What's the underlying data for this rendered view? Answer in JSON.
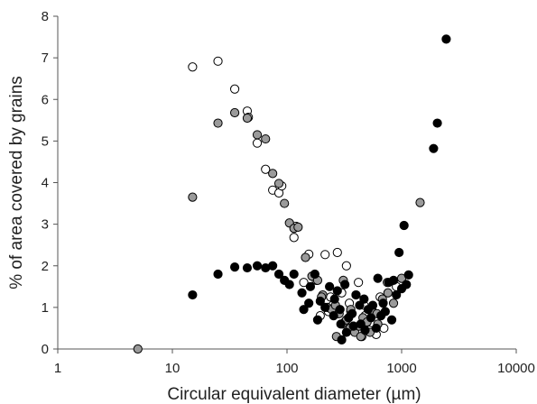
{
  "chart_data": {
    "type": "scatter",
    "title": "",
    "xlabel": "Circular equivalent diameter (µm)",
    "ylabel": "% of area covered by grains",
    "xscale": "log",
    "xlim": [
      1,
      10000
    ],
    "ylim": [
      0,
      8
    ],
    "x_ticks": [
      "1",
      "10",
      "100",
      "1000",
      "10000"
    ],
    "y_ticks": [
      "0",
      "1",
      "2",
      "3",
      "4",
      "5",
      "6",
      "7",
      "8"
    ],
    "grid": false,
    "legend": "none",
    "series": [
      {
        "marker": "open-circle",
        "fill": "#ffffff",
        "points": [
          [
            15,
            6.78
          ],
          [
            25,
            6.92
          ],
          [
            35,
            6.25
          ],
          [
            45,
            5.72
          ],
          [
            46,
            5.57
          ],
          [
            55,
            4.95
          ],
          [
            65,
            4.32
          ],
          [
            75,
            3.82
          ],
          [
            85,
            3.75
          ],
          [
            90,
            3.92
          ],
          [
            115,
            2.68
          ],
          [
            120,
            2.95
          ],
          [
            155,
            2.28
          ],
          [
            215,
            2.27
          ],
          [
            275,
            2.32
          ],
          [
            330,
            2.0
          ],
          [
            140,
            1.6
          ],
          [
            180,
            1.65
          ],
          [
            240,
            1.25
          ],
          [
            300,
            1.35
          ],
          [
            350,
            1.1
          ],
          [
            420,
            1.6
          ],
          [
            470,
            1.05
          ],
          [
            550,
            0.95
          ],
          [
            650,
            1.25
          ],
          [
            750,
            1.6
          ],
          [
            900,
            1.5
          ],
          [
            195,
            0.8
          ],
          [
            230,
            0.9
          ],
          [
            280,
            0.85
          ],
          [
            320,
            0.65
          ],
          [
            380,
            0.55
          ],
          [
            410,
            0.45
          ],
          [
            450,
            0.3
          ],
          [
            520,
            0.45
          ],
          [
            600,
            0.35
          ],
          [
            700,
            0.5
          ],
          [
            250,
            1.05
          ],
          [
            360,
            0.9
          ],
          [
            480,
            0.8
          ]
        ]
      },
      {
        "marker": "grey-circle",
        "fill": "#9a9a9a",
        "points": [
          [
            5,
            0.0
          ],
          [
            15,
            3.65
          ],
          [
            25,
            5.43
          ],
          [
            35,
            5.68
          ],
          [
            45,
            5.55
          ],
          [
            55,
            5.15
          ],
          [
            65,
            5.05
          ],
          [
            75,
            4.22
          ],
          [
            85,
            3.98
          ],
          [
            95,
            3.5
          ],
          [
            105,
            3.03
          ],
          [
            115,
            2.9
          ],
          [
            125,
            2.93
          ],
          [
            145,
            2.2
          ],
          [
            165,
            1.75
          ],
          [
            185,
            1.65
          ],
          [
            205,
            1.3
          ],
          [
            225,
            1.0
          ],
          [
            245,
            0.95
          ],
          [
            265,
            1.05
          ],
          [
            285,
            0.85
          ],
          [
            305,
            0.6
          ],
          [
            330,
            0.7
          ],
          [
            355,
            0.5
          ],
          [
            390,
            0.4
          ],
          [
            425,
            0.55
          ],
          [
            460,
            0.75
          ],
          [
            500,
            0.65
          ],
          [
            550,
            0.9
          ],
          [
            610,
            0.85
          ],
          [
            680,
            1.2
          ],
          [
            760,
            1.35
          ],
          [
            850,
            1.1
          ],
          [
            1000,
            1.7
          ],
          [
            1450,
            3.52
          ],
          [
            310,
            1.65
          ],
          [
            400,
            1.3
          ],
          [
            270,
            0.3
          ],
          [
            440,
            0.3
          ],
          [
            530,
            0.4
          ],
          [
            200,
            1.25
          ],
          [
            360,
            0.95
          ],
          [
            620,
            0.6
          ]
        ]
      },
      {
        "marker": "filled-circle",
        "fill": "#000000",
        "points": [
          [
            15,
            1.3
          ],
          [
            25,
            1.8
          ],
          [
            35,
            1.97
          ],
          [
            45,
            1.95
          ],
          [
            55,
            2.0
          ],
          [
            65,
            1.95
          ],
          [
            75,
            2.0
          ],
          [
            85,
            1.8
          ],
          [
            95,
            1.65
          ],
          [
            105,
            1.55
          ],
          [
            115,
            1.8
          ],
          [
            135,
            1.35
          ],
          [
            155,
            1.1
          ],
          [
            175,
            1.8
          ],
          [
            195,
            1.15
          ],
          [
            215,
            1.0
          ],
          [
            235,
            1.5
          ],
          [
            255,
            0.8
          ],
          [
            275,
            1.4
          ],
          [
            295,
            0.6
          ],
          [
            320,
            1.55
          ],
          [
            345,
            0.75
          ],
          [
            370,
            0.85
          ],
          [
            400,
            1.3
          ],
          [
            430,
            1.05
          ],
          [
            470,
            1.2
          ],
          [
            510,
            0.95
          ],
          [
            560,
            1.05
          ],
          [
            620,
            1.7
          ],
          [
            690,
            1.1
          ],
          [
            770,
            1.6
          ],
          [
            850,
            1.65
          ],
          [
            950,
            2.32
          ],
          [
            1050,
            2.97
          ],
          [
            1100,
            1.55
          ],
          [
            1150,
            1.78
          ],
          [
            1900,
            4.82
          ],
          [
            2050,
            5.43
          ],
          [
            2450,
            7.45
          ],
          [
            140,
            0.95
          ],
          [
            160,
            1.5
          ],
          [
            185,
            0.7
          ],
          [
            260,
            1.2
          ],
          [
            290,
            0.95
          ],
          [
            300,
            0.22
          ],
          [
            330,
            0.4
          ],
          [
            380,
            0.55
          ],
          [
            440,
            0.6
          ],
          [
            480,
            0.45
          ],
          [
            540,
            0.75
          ],
          [
            600,
            0.5
          ],
          [
            660,
            0.8
          ],
          [
            720,
            0.9
          ],
          [
            820,
            0.7
          ],
          [
            900,
            1.3
          ],
          [
            1000,
            1.45
          ]
        ]
      }
    ]
  }
}
